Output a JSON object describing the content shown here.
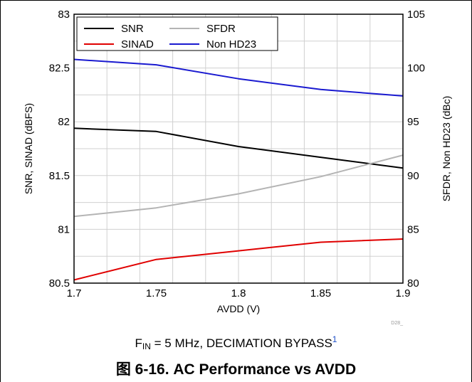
{
  "condition": {
    "prefix": "F",
    "subscript": "IN",
    "text": " = 5 MHz, DECIMATION BYPASS",
    "footnote": "1"
  },
  "caption": "图 6-16. AC Performance vs AVDD",
  "figure_code": "D28_",
  "chart_data": {
    "type": "line",
    "title": "",
    "xlabel": "AVDD (V)",
    "ylabel": "SNR, SINAD (dBFS)",
    "y2label": "SFDR, Non HD23 (dBc)",
    "xlim": [
      1.7,
      1.9
    ],
    "ylim": [
      80.5,
      83
    ],
    "y2lim": [
      80,
      105
    ],
    "x_ticks": [
      "1.7",
      "1.75",
      "1.8",
      "1.85",
      "1.9"
    ],
    "y_ticks": [
      "80.5",
      "81",
      "81.5",
      "82",
      "82.5",
      "83"
    ],
    "y2_ticks": [
      "80",
      "85",
      "90",
      "95",
      "100",
      "105"
    ],
    "grid": true,
    "legend_position": "top-left",
    "x": [
      1.7,
      1.75,
      1.8,
      1.85,
      1.9
    ],
    "series": [
      {
        "name": "SNR",
        "axis": "left",
        "color": "#000000",
        "values": [
          81.94,
          81.91,
          81.77,
          81.67,
          81.57
        ]
      },
      {
        "name": "SFDR",
        "axis": "right",
        "color": "#b4b4b4",
        "values": [
          86.2,
          87.0,
          88.3,
          89.9,
          91.9
        ]
      },
      {
        "name": "SINAD",
        "axis": "left",
        "color": "#e00000",
        "values": [
          80.53,
          80.72,
          80.8,
          80.88,
          80.91
        ]
      },
      {
        "name": "Non HD23",
        "axis": "right",
        "color": "#1a1ad0",
        "values": [
          100.8,
          100.3,
          99.0,
          98.0,
          97.4
        ]
      }
    ]
  }
}
